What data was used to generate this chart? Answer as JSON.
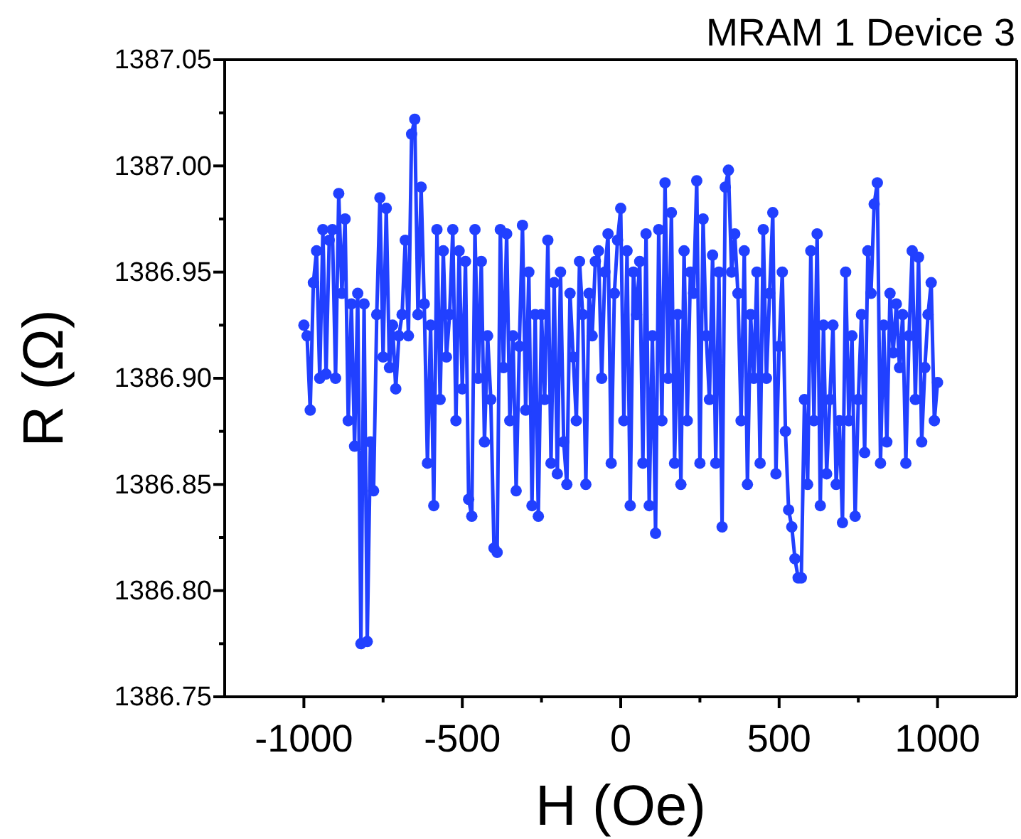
{
  "chart_data": {
    "type": "line",
    "title": "MRAM 1 Device 3",
    "xlabel": "H (Oe)",
    "ylabel": "R (Ω)",
    "x": [
      -1000,
      -990,
      -980,
      -970,
      -960,
      -950,
      -940,
      -930,
      -920,
      -910,
      -900,
      -890,
      -880,
      -870,
      -860,
      -850,
      -840,
      -830,
      -820,
      -810,
      -800,
      -790,
      -780,
      -770,
      -760,
      -750,
      -740,
      -730,
      -720,
      -710,
      -700,
      -690,
      -680,
      -670,
      -660,
      -650,
      -640,
      -630,
      -620,
      -610,
      -600,
      -590,
      -580,
      -570,
      -560,
      -550,
      -540,
      -530,
      -520,
      -510,
      -500,
      -490,
      -480,
      -470,
      -460,
      -450,
      -440,
      -430,
      -420,
      -410,
      -400,
      -390,
      -380,
      -370,
      -360,
      -350,
      -340,
      -330,
      -320,
      -310,
      -300,
      -290,
      -280,
      -270,
      -260,
      -250,
      -240,
      -230,
      -220,
      -210,
      -200,
      -190,
      -180,
      -170,
      -160,
      -150,
      -140,
      -130,
      -120,
      -110,
      -100,
      -90,
      -80,
      -70,
      -60,
      -50,
      -40,
      -30,
      -20,
      -10,
      0,
      10,
      20,
      30,
      40,
      50,
      60,
      70,
      80,
      90,
      100,
      110,
      120,
      130,
      140,
      150,
      160,
      170,
      180,
      190,
      200,
      210,
      220,
      230,
      240,
      250,
      260,
      270,
      280,
      290,
      300,
      310,
      320,
      330,
      340,
      350,
      360,
      370,
      380,
      390,
      400,
      410,
      420,
      430,
      440,
      450,
      460,
      470,
      480,
      490,
      500,
      510,
      520,
      530,
      540,
      550,
      560,
      570,
      580,
      590,
      600,
      610,
      620,
      630,
      640,
      650,
      660,
      670,
      680,
      690,
      700,
      710,
      720,
      730,
      740,
      750,
      760,
      770,
      780,
      790,
      800,
      810,
      820,
      830,
      840,
      850,
      860,
      870,
      880,
      890,
      900,
      910,
      920,
      930,
      940,
      950,
      960,
      970,
      980,
      990,
      1000
    ],
    "series": [
      {
        "color": "#2140ff",
        "values": [
          1386.925,
          1386.92,
          1386.885,
          1386.945,
          1386.96,
          1386.9,
          1386.97,
          1386.902,
          1386.965,
          1386.97,
          1386.9,
          1386.987,
          1386.94,
          1386.975,
          1386.88,
          1386.935,
          1386.868,
          1386.94,
          1386.775,
          1386.935,
          1386.776,
          1386.87,
          1386.847,
          1386.93,
          1386.985,
          1386.91,
          1386.98,
          1386.905,
          1386.925,
          1386.895,
          1386.92,
          1386.93,
          1386.965,
          1386.92,
          1387.015,
          1387.022,
          1386.93,
          1386.99,
          1386.935,
          1386.86,
          1386.925,
          1386.84,
          1386.97,
          1386.89,
          1386.96,
          1386.91,
          1386.93,
          1386.97,
          1386.88,
          1386.96,
          1386.895,
          1386.955,
          1386.843,
          1386.835,
          1386.97,
          1386.9,
          1386.955,
          1386.87,
          1386.92,
          1386.89,
          1386.82,
          1386.818,
          1386.97,
          1386.905,
          1386.968,
          1386.88,
          1386.92,
          1386.847,
          1386.915,
          1386.972,
          1386.885,
          1386.95,
          1386.84,
          1386.93,
          1386.835,
          1386.93,
          1386.89,
          1386.965,
          1386.86,
          1386.945,
          1386.855,
          1386.95,
          1386.87,
          1386.85,
          1386.94,
          1386.91,
          1386.88,
          1386.955,
          1386.93,
          1386.85,
          1386.94,
          1386.92,
          1386.955,
          1386.96,
          1386.9,
          1386.95,
          1386.968,
          1386.86,
          1386.94,
          1386.965,
          1386.98,
          1386.88,
          1386.96,
          1386.84,
          1386.95,
          1386.93,
          1386.955,
          1386.86,
          1386.968,
          1386.84,
          1386.92,
          1386.827,
          1386.97,
          1386.88,
          1386.992,
          1386.9,
          1386.978,
          1386.86,
          1386.93,
          1386.85,
          1386.96,
          1386.88,
          1386.95,
          1386.94,
          1386.993,
          1386.86,
          1386.975,
          1386.92,
          1386.89,
          1386.958,
          1386.86,
          1386.95,
          1386.83,
          1386.99,
          1386.998,
          1386.95,
          1386.968,
          1386.94,
          1386.88,
          1386.96,
          1386.85,
          1386.93,
          1386.9,
          1386.95,
          1386.86,
          1386.97,
          1386.9,
          1386.94,
          1386.978,
          1386.855,
          1386.915,
          1386.95,
          1386.875,
          1386.838,
          1386.83,
          1386.815,
          1386.806,
          1386.806,
          1386.89,
          1386.85,
          1386.96,
          1386.88,
          1386.968,
          1386.84,
          1386.925,
          1386.855,
          1386.89,
          1386.925,
          1386.85,
          1386.88,
          1386.832,
          1386.95,
          1386.88,
          1386.92,
          1386.835,
          1386.89,
          1386.93,
          1386.865,
          1386.96,
          1386.94,
          1386.982,
          1386.992,
          1386.86,
          1386.925,
          1386.87,
          1386.94,
          1386.912,
          1386.935,
          1386.905,
          1386.93,
          1386.86,
          1386.92,
          1386.96,
          1386.89,
          1386.957,
          1386.87,
          1386.905,
          1386.93,
          1386.945,
          1386.88,
          1386.898
        ]
      }
    ],
    "xlim": [
      -1250,
      1250
    ],
    "ylim": [
      1386.75,
      1387.05
    ],
    "xticks": [
      -1000,
      {
        "value": -750,
        "label": null
      },
      -500,
      {
        "value": -250,
        "label": null
      },
      0,
      {
        "value": 250,
        "label": null
      },
      500,
      {
        "value": 750,
        "label": null
      },
      1000
    ],
    "yticks": [
      {
        "value": 1386.75,
        "label": "1386.75"
      },
      {
        "value": 1386.775,
        "label": null
      },
      {
        "value": 1386.8,
        "label": "1386.80"
      },
      {
        "value": 1386.825,
        "label": null
      },
      {
        "value": 1386.85,
        "label": "1386.85"
      },
      {
        "value": 1386.875,
        "label": null
      },
      {
        "value": 1386.9,
        "label": "1386.90"
      },
      {
        "value": 1386.925,
        "label": null
      },
      {
        "value": 1386.95,
        "label": "1386.95"
      },
      {
        "value": 1386.975,
        "label": null
      },
      {
        "value": 1387.0,
        "label": "1387.00"
      },
      {
        "value": 1387.025,
        "label": null
      },
      {
        "value": 1387.05,
        "label": "1387.05"
      }
    ],
    "marker": "circle",
    "line_style": "solid",
    "grid": false
  }
}
